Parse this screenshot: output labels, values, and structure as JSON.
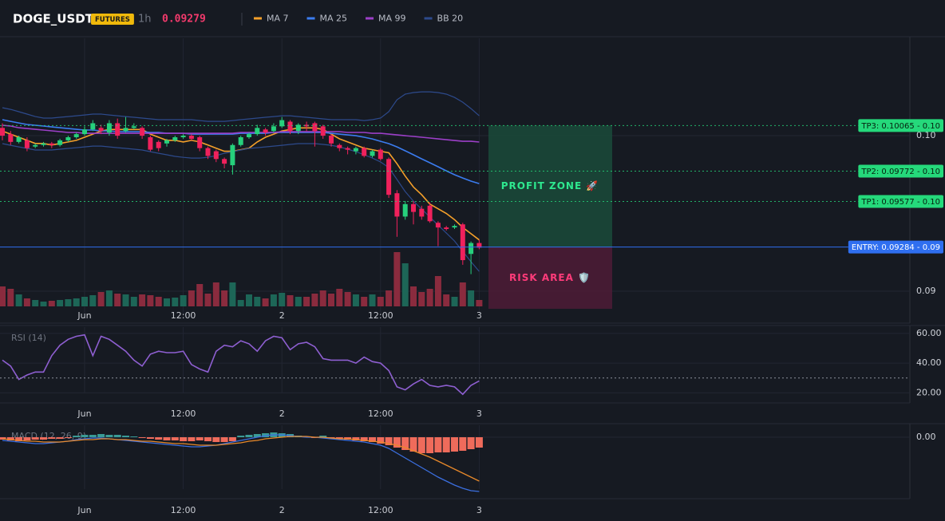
{
  "header": {
    "symbol": "DOGE_USDT",
    "badge": "FUTURES",
    "interval": "1h",
    "price": "0.09279"
  },
  "chart_data": [
    {
      "type": "candlestick",
      "categories": [
        null,
        null,
        null,
        null,
        null,
        null,
        null,
        null,
        null,
        null,
        "Jun",
        null,
        null,
        null,
        null,
        null,
        null,
        null,
        null,
        null,
        null,
        null,
        "12:00",
        null,
        null,
        null,
        null,
        null,
        null,
        null,
        null,
        null,
        null,
        null,
        "2",
        null,
        null,
        null,
        null,
        null,
        null,
        null,
        null,
        null,
        null,
        null,
        "12:00",
        null,
        null,
        null,
        null,
        null,
        null,
        null,
        null,
        null,
        null,
        null,
        "3"
      ],
      "open": [
        0.1005,
        0.1001,
        0.0996,
        0.0997,
        0.0993,
        0.0994,
        0.0995,
        0.0994,
        0.0997,
        0.0999,
        0.1001,
        0.1004,
        0.1005,
        0.1002,
        0.1008,
        0.1003,
        0.1005,
        0.1005,
        0.0999,
        0.0996,
        0.0995,
        0.0997,
        0.0999,
        0.1,
        0.0999,
        0.0992,
        0.099,
        0.0985,
        0.0981,
        0.0994,
        0.0999,
        0.1001,
        0.1004,
        0.1003,
        0.1006,
        0.1009,
        0.1003,
        0.1007,
        0.1008,
        0.1006,
        0.1,
        0.0994,
        0.0992,
        0.099,
        0.0992,
        0.0987,
        0.0991,
        0.0985,
        0.0963,
        0.0948,
        0.0956,
        0.0953,
        0.0955,
        0.0944,
        0.0941,
        0.0941,
        0.0943,
        0.0924,
        0.0931
      ],
      "high": [
        0.1008,
        0.1003,
        0.1,
        0.0999,
        0.0995,
        0.0996,
        0.0996,
        0.0998,
        0.1,
        0.1002,
        0.1006,
        0.101,
        0.1007,
        0.101,
        0.1011,
        0.1012,
        0.1008,
        0.1006,
        0.1,
        0.0997,
        0.0998,
        0.1,
        0.1001,
        0.1001,
        0.1,
        0.0993,
        0.0991,
        0.0986,
        0.0995,
        0.1,
        0.1002,
        0.1007,
        0.1005,
        0.1008,
        0.1012,
        0.101,
        0.1008,
        0.1009,
        0.1009,
        0.1007,
        0.1001,
        0.0995,
        0.0993,
        0.0993,
        0.0993,
        0.0991,
        0.0992,
        0.0986,
        0.0965,
        0.0958,
        0.0958,
        0.0955,
        0.0957,
        0.0945,
        0.0942,
        0.0943,
        0.0944,
        0.0932,
        0.0933
      ],
      "low": [
        0.0997,
        0.0994,
        0.0995,
        0.099,
        0.0992,
        0.0993,
        0.0992,
        0.0993,
        0.0996,
        0.0998,
        0.1,
        0.1003,
        0.1001,
        0.1,
        0.0998,
        0.1002,
        0.1004,
        0.0998,
        0.099,
        0.099,
        0.0993,
        0.0996,
        0.0998,
        0.0997,
        0.099,
        0.0985,
        0.0983,
        0.0979,
        0.0975,
        0.0993,
        0.0998,
        0.1,
        0.1,
        0.1002,
        0.1005,
        0.1001,
        0.1001,
        0.1003,
        0.0993,
        0.0998,
        0.0993,
        0.099,
        0.0988,
        0.0988,
        0.0986,
        0.0986,
        0.0984,
        0.096,
        0.0935,
        0.0946,
        0.0943,
        0.0946,
        0.0944,
        0.0929,
        0.0939,
        0.094,
        0.0917,
        0.0911,
        0.0927
      ],
      "close": [
        0.1,
        0.0996,
        0.0999,
        0.0992,
        0.0994,
        0.0995,
        0.0994,
        0.0997,
        0.0999,
        0.1001,
        0.1004,
        0.1008,
        0.1003,
        0.1008,
        0.1,
        0.1005,
        0.1006,
        0.1,
        0.0991,
        0.0992,
        0.0997,
        0.0999,
        0.1,
        0.0998,
        0.0992,
        0.0987,
        0.0985,
        0.0982,
        0.0994,
        0.0999,
        0.1001,
        0.1005,
        0.1002,
        0.1006,
        0.101,
        0.1003,
        0.1007,
        0.1006,
        0.1003,
        0.1,
        0.0995,
        0.0992,
        0.0991,
        0.0992,
        0.0987,
        0.099,
        0.0985,
        0.0962,
        0.0948,
        0.0956,
        0.0951,
        0.0948,
        0.0945,
        0.0941,
        0.094,
        0.0942,
        0.092,
        0.0931,
        0.0928
      ],
      "up_color": "#26d07c",
      "down_color": "#f0215c",
      "volume": [
        25,
        22,
        15,
        10,
        8,
        6,
        7,
        8,
        9,
        10,
        12,
        14,
        18,
        20,
        16,
        15,
        12,
        15,
        14,
        12,
        10,
        11,
        14,
        20,
        28,
        16,
        30,
        20,
        30,
        8,
        15,
        12,
        10,
        15,
        17,
        14,
        12,
        12,
        16,
        20,
        16,
        22,
        18,
        15,
        12,
        15,
        12,
        20,
        68,
        54,
        25,
        18,
        22,
        38,
        15,
        12,
        30,
        20,
        8
      ],
      "volume_up_color": "#1d6657",
      "volume_down_color": "#8a2b3e",
      "series": [
        {
          "name": "MA 7",
          "color": "#f5a02a",
          "values": [
            0.1003,
            0.1001,
            0.0999,
            0.0997,
            0.0995,
            0.0995,
            0.0994,
            0.0995,
            0.0996,
            0.0997,
            0.0999,
            0.1001,
            0.1003,
            0.1004,
            0.1004,
            0.1004,
            0.1004,
            0.1004,
            0.1001,
            0.0999,
            0.0997,
            0.0997,
            0.0996,
            0.0997,
            0.0996,
            0.0994,
            0.0992,
            0.099,
            0.099,
            0.0991,
            0.0992,
            0.0996,
            0.0999,
            0.1001,
            0.1003,
            0.1004,
            0.1005,
            0.1005,
            0.1005,
            0.1004,
            0.1001,
            0.0998,
            0.0996,
            0.0994,
            0.0992,
            0.0991,
            0.099,
            0.0989,
            0.0982,
            0.0974,
            0.0967,
            0.0962,
            0.0956,
            0.0953,
            0.095,
            0.0946,
            0.0941,
            0.0937,
            0.0933
          ]
        },
        {
          "name": "MA 25",
          "color": "#3b7cf0",
          "values": [
            0.10103,
            0.10092,
            0.10082,
            0.10072,
            0.10067,
            0.10062,
            0.10056,
            0.10051,
            0.10046,
            0.10041,
            0.10036,
            0.10036,
            0.10031,
            0.10031,
            0.10026,
            0.10026,
            0.10026,
            0.10026,
            0.10021,
            0.10021,
            0.10015,
            0.10015,
            0.10015,
            0.1001,
            0.1001,
            0.1001,
            0.1001,
            0.1001,
            0.1001,
            0.10015,
            0.10015,
            0.10015,
            0.10015,
            0.10021,
            0.10021,
            0.10021,
            0.10021,
            0.10021,
            0.10021,
            0.10021,
            0.10015,
            0.1001,
            0.10005,
            0.1,
            0.0999,
            0.09979,
            0.09964,
            0.09949,
            0.09928,
            0.09903,
            0.09877,
            0.09851,
            0.09826,
            0.098,
            0.09774,
            0.09749,
            0.09728,
            0.09708,
            0.09692
          ]
        },
        {
          "name": "MA 99",
          "color": "#9c3fc8",
          "values": [
            0.10067,
            0.10062,
            0.10051,
            0.10046,
            0.10041,
            0.10036,
            0.10031,
            0.10026,
            0.10021,
            0.10021,
            0.10015,
            0.10015,
            0.10015,
            0.10015,
            0.10015,
            0.10015,
            0.10015,
            0.10015,
            0.10015,
            0.10015,
            0.10015,
            0.10015,
            0.10015,
            0.10015,
            0.10015,
            0.10015,
            0.10015,
            0.10015,
            0.10015,
            0.10021,
            0.10021,
            0.10021,
            0.10021,
            0.10021,
            0.10026,
            0.10026,
            0.10026,
            0.10026,
            0.10026,
            0.10026,
            0.10026,
            0.10026,
            0.10021,
            0.10021,
            0.10021,
            0.10015,
            0.10015,
            0.1001,
            0.10005,
            0.1,
            0.09995,
            0.0999,
            0.09985,
            0.09979,
            0.09974,
            0.09969,
            0.09964,
            0.09964,
            0.09959
          ]
        },
        {
          "name": "BB 20",
          "color": "#2d4a8c",
          "upper": [
            0.1018,
            0.10169,
            0.10154,
            0.10139,
            0.10123,
            0.10113,
            0.10113,
            0.10118,
            0.10123,
            0.10128,
            0.10133,
            0.10139,
            0.10139,
            0.10133,
            0.10128,
            0.10123,
            0.10118,
            0.10113,
            0.10108,
            0.10103,
            0.10103,
            0.10103,
            0.10103,
            0.10103,
            0.10097,
            0.10092,
            0.10092,
            0.10092,
            0.10097,
            0.10103,
            0.10108,
            0.10113,
            0.10118,
            0.10123,
            0.10128,
            0.10128,
            0.10123,
            0.10118,
            0.10113,
            0.10108,
            0.10103,
            0.10103,
            0.10103,
            0.10103,
            0.10097,
            0.10103,
            0.10113,
            0.10154,
            0.10231,
            0.10267,
            0.10277,
            0.10282,
            0.10282,
            0.10277,
            0.10267,
            0.10246,
            0.10215,
            0.10174,
            0.10128
          ],
          "lower": [
            0.09949,
            0.09938,
            0.09928,
            0.09918,
            0.09908,
            0.09908,
            0.09908,
            0.09913,
            0.09918,
            0.09923,
            0.09928,
            0.09933,
            0.09933,
            0.09928,
            0.09923,
            0.09918,
            0.09913,
            0.09908,
            0.09897,
            0.09887,
            0.09877,
            0.09867,
            0.09861,
            0.09856,
            0.09856,
            0.09861,
            0.09872,
            0.09887,
            0.09897,
            0.09908,
            0.09918,
            0.09923,
            0.09928,
            0.09933,
            0.09938,
            0.09944,
            0.09949,
            0.09949,
            0.09949,
            0.09944,
            0.09938,
            0.09928,
            0.09913,
            0.09897,
            0.09877,
            0.09856,
            0.09831,
            0.09795,
            0.09718,
            0.09641,
            0.09579,
            0.09528,
            0.09477,
            0.09425,
            0.09374,
            0.09323,
            0.09256,
            0.0919,
            0.09128
          ]
        }
      ],
      "ylim": [
        0.08795,
        0.10626
      ],
      "yticks": [
        {
          "value": 0.1,
          "label": "0.10"
        },
        {
          "value": 0.09,
          "label": "0.09"
        }
      ],
      "grid": true,
      "levels": [
        {
          "label": "TP3: 0.10065 - 0.10",
          "value": 0.10065,
          "color": "#25d97b",
          "label_color": "#06210f",
          "dash": true
        },
        {
          "label": "TP2: 0.09772 - 0.10",
          "value": 0.09772,
          "color": "#25d97b",
          "label_color": "#06210f",
          "dash": true
        },
        {
          "label": "TP1: 0.09577 - 0.10",
          "value": 0.09577,
          "color": "#25d97b",
          "label_color": "#06210f",
          "dash": true
        },
        {
          "label": "ENTRY: 0.09284 - 0.09",
          "value": 0.09284,
          "color": "#2f6ff0",
          "label_color": "#ffffff",
          "dash": false
        }
      ],
      "zones": [
        {
          "label": "PROFIT ZONE 🚀",
          "from": 0.09284,
          "to": 0.10065,
          "color": "#1a4838",
          "text_color": "#2ee88f"
        },
        {
          "label": "RISK AREA 🛡️",
          "from": 0.09284,
          "to": 0.08887,
          "color": "#4a1c35",
          "text_color": "#ff3b7a"
        }
      ]
    },
    {
      "type": "line",
      "title": "RSI (14)",
      "color": "#8e5fd1",
      "values": [
        42,
        38,
        29,
        32,
        34,
        34,
        45,
        52,
        56,
        58,
        59,
        45,
        58,
        56,
        52,
        48,
        42,
        38,
        46,
        48,
        47,
        47,
        48,
        39,
        36,
        34,
        48,
        52,
        51,
        55,
        53,
        48,
        55,
        58,
        57,
        49,
        53,
        54,
        51,
        43,
        42,
        42,
        42,
        40,
        44,
        41,
        40,
        35,
        24,
        22,
        26,
        29,
        25,
        24,
        25,
        24,
        19,
        25,
        28
      ],
      "ylim": [
        13.2,
        64.2
      ],
      "yticks": [
        {
          "value": 60,
          "label": "60.00"
        },
        {
          "value": 40,
          "label": "40.00"
        },
        {
          "value": 20,
          "label": "20.00"
        }
      ],
      "grid": true,
      "levels": [
        30
      ]
    },
    {
      "type": "macd",
      "title": "MACD (12, 26, 9)",
      "histogram": [
        -6e-05,
        -8e-05,
        -0.0001,
        -8e-05,
        -6e-05,
        -6e-05,
        -4e-05,
        -4e-05,
        -2e-05,
        4e-05,
        6e-05,
        6e-05,
        8e-05,
        6e-05,
        6e-05,
        4e-05,
        2e-05,
        -2e-05,
        -4e-05,
        -6e-05,
        -8e-05,
        -8e-05,
        -0.0001,
        -0.0001,
        -8e-05,
        -0.0001,
        -0.00012,
        -0.00012,
        -0.0001,
        4e-05,
        6e-05,
        8e-05,
        0.0001,
        0.00012,
        0.0001,
        8e-05,
        4e-05,
        2e-05,
        -2e-05,
        4e-05,
        -2e-05,
        -4e-05,
        -6e-05,
        -8e-05,
        -0.0001,
        -0.00012,
        -0.00016,
        -0.0002,
        -0.00026,
        -0.00032,
        -0.00036,
        -0.0004,
        -0.0004,
        -0.00038,
        -0.00038,
        -0.00036,
        -0.00034,
        -0.0003,
        -0.00026
      ],
      "macd": [
        -8e-05,
        -0.0001,
        -0.00012,
        -0.00014,
        -0.00016,
        -0.00016,
        -0.00014,
        -0.00012,
        -0.0001,
        -6e-05,
        -4e-05,
        -2e-05,
        -2e-05,
        -4e-05,
        -6e-05,
        -8e-05,
        -0.0001,
        -0.00012,
        -0.00014,
        -0.00016,
        -0.00018,
        -0.0002,
        -0.00022,
        -0.00024,
        -0.00024,
        -0.00022,
        -0.0002,
        -0.00016,
        -0.00012,
        -8e-05,
        -4e-05,
        0,
        4e-05,
        6e-05,
        6e-05,
        4e-05,
        2e-05,
        0,
        0,
        -2e-05,
        -4e-05,
        -6e-05,
        -8e-05,
        -0.0001,
        -0.00012,
        -0.00016,
        -0.0002,
        -0.00028,
        -0.0004,
        -0.00052,
        -0.00064,
        -0.00076,
        -0.00088,
        -0.001,
        -0.0011,
        -0.0012,
        -0.00128,
        -0.00134,
        -0.00136
      ],
      "signal": [
        -4e-05,
        -6e-05,
        -8e-05,
        -0.0001,
        -0.0001,
        -0.00012,
        -0.00012,
        -0.00012,
        -0.0001,
        -8e-05,
        -6e-05,
        -6e-05,
        -4e-05,
        -4e-05,
        -6e-05,
        -6e-05,
        -8e-05,
        -0.0001,
        -0.0001,
        -0.00012,
        -0.00014,
        -0.00016,
        -0.00016,
        -0.00018,
        -0.0002,
        -0.0002,
        -0.0002,
        -0.00018,
        -0.00016,
        -0.00014,
        -0.0001,
        -8e-05,
        -4e-05,
        -2e-05,
        0,
        2e-05,
        2e-05,
        2e-05,
        0,
        0,
        -2e-05,
        -4e-05,
        -4e-05,
        -6e-05,
        -8e-05,
        -0.0001,
        -0.00012,
        -0.00016,
        -0.0002,
        -0.00026,
        -0.00034,
        -0.00042,
        -0.0005,
        -0.0006,
        -0.0007,
        -0.0008,
        -0.0009,
        -0.001,
        -0.0011
      ],
      "hist_up_color": "#3a9b96",
      "hist_down_color": "#ef6b5b",
      "macd_color": "#3b6fe0",
      "signal_color": "#e8892a",
      "ylim": [
        -0.00154,
        0.0003
      ],
      "yticks": [
        {
          "value": 0,
          "label": "0.00"
        }
      ],
      "grid": true
    }
  ]
}
